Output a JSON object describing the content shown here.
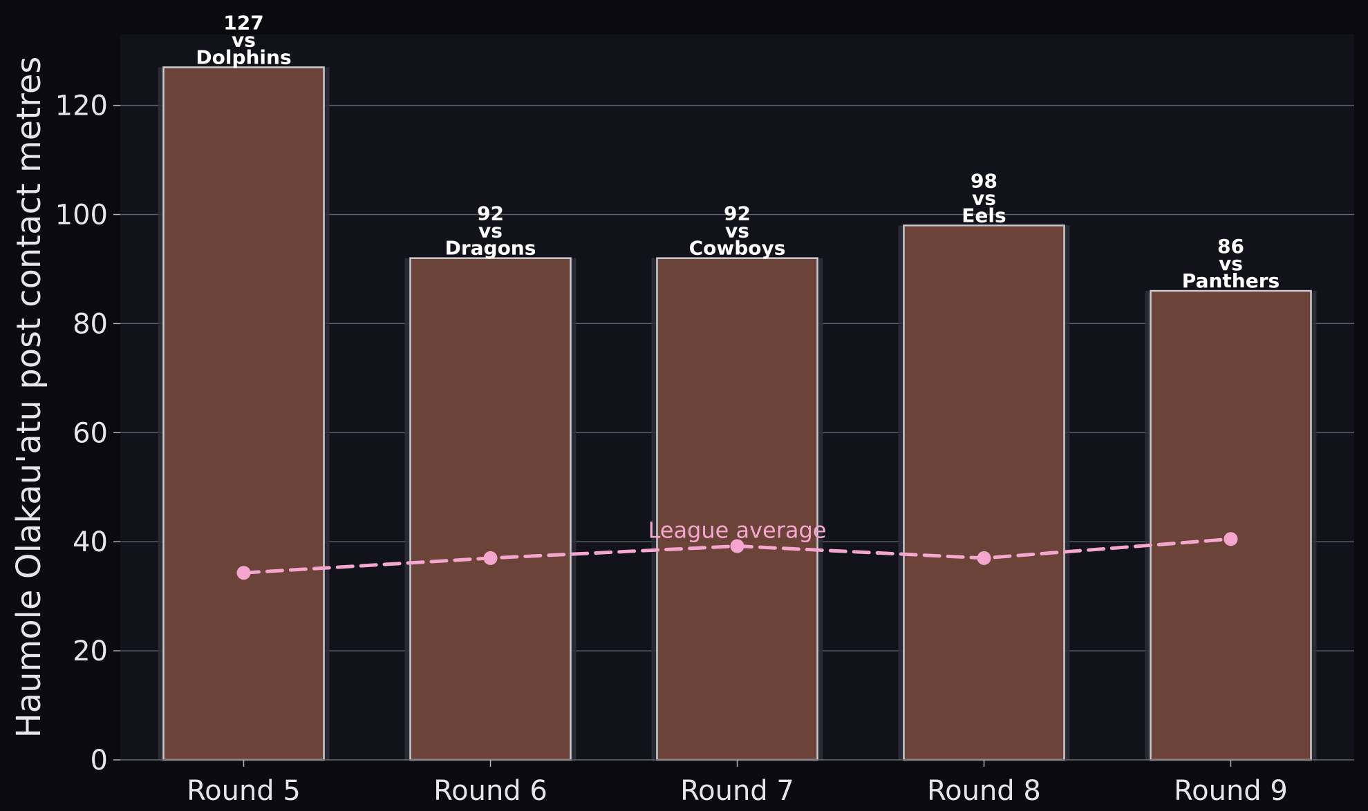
{
  "chart_data": {
    "type": "bar",
    "categories": [
      "Round 5",
      "Round 6",
      "Round 7",
      "Round 8",
      "Round 9"
    ],
    "series": [
      {
        "values": [
          127,
          92,
          92,
          98,
          86
        ]
      },
      {
        "name": "League average",
        "type": "line",
        "values": [
          34.3,
          37.0,
          39.2,
          37.0,
          40.5
        ]
      }
    ],
    "bar_labels": [
      [
        "127",
        "vs",
        "Dolphins"
      ],
      [
        "92",
        "vs",
        "Dragons"
      ],
      [
        "92",
        "vs",
        "Cowboys"
      ],
      [
        "98",
        "vs",
        "Eels"
      ],
      [
        "86",
        "vs",
        "Panthers"
      ]
    ],
    "ylabel": "Haumole Olakau'atu post contact metres",
    "xlabel": "",
    "ylim": [
      0,
      133
    ],
    "yticks": [
      0,
      20,
      40,
      60,
      80,
      100,
      120
    ],
    "grid": "horizontal",
    "colors": {
      "bar": "#6b4339",
      "bar_edge": "#c9c9cf",
      "line": "#f4a6cf",
      "plot_bg": "#11121a",
      "page_bg": "#0b0b0f"
    }
  }
}
